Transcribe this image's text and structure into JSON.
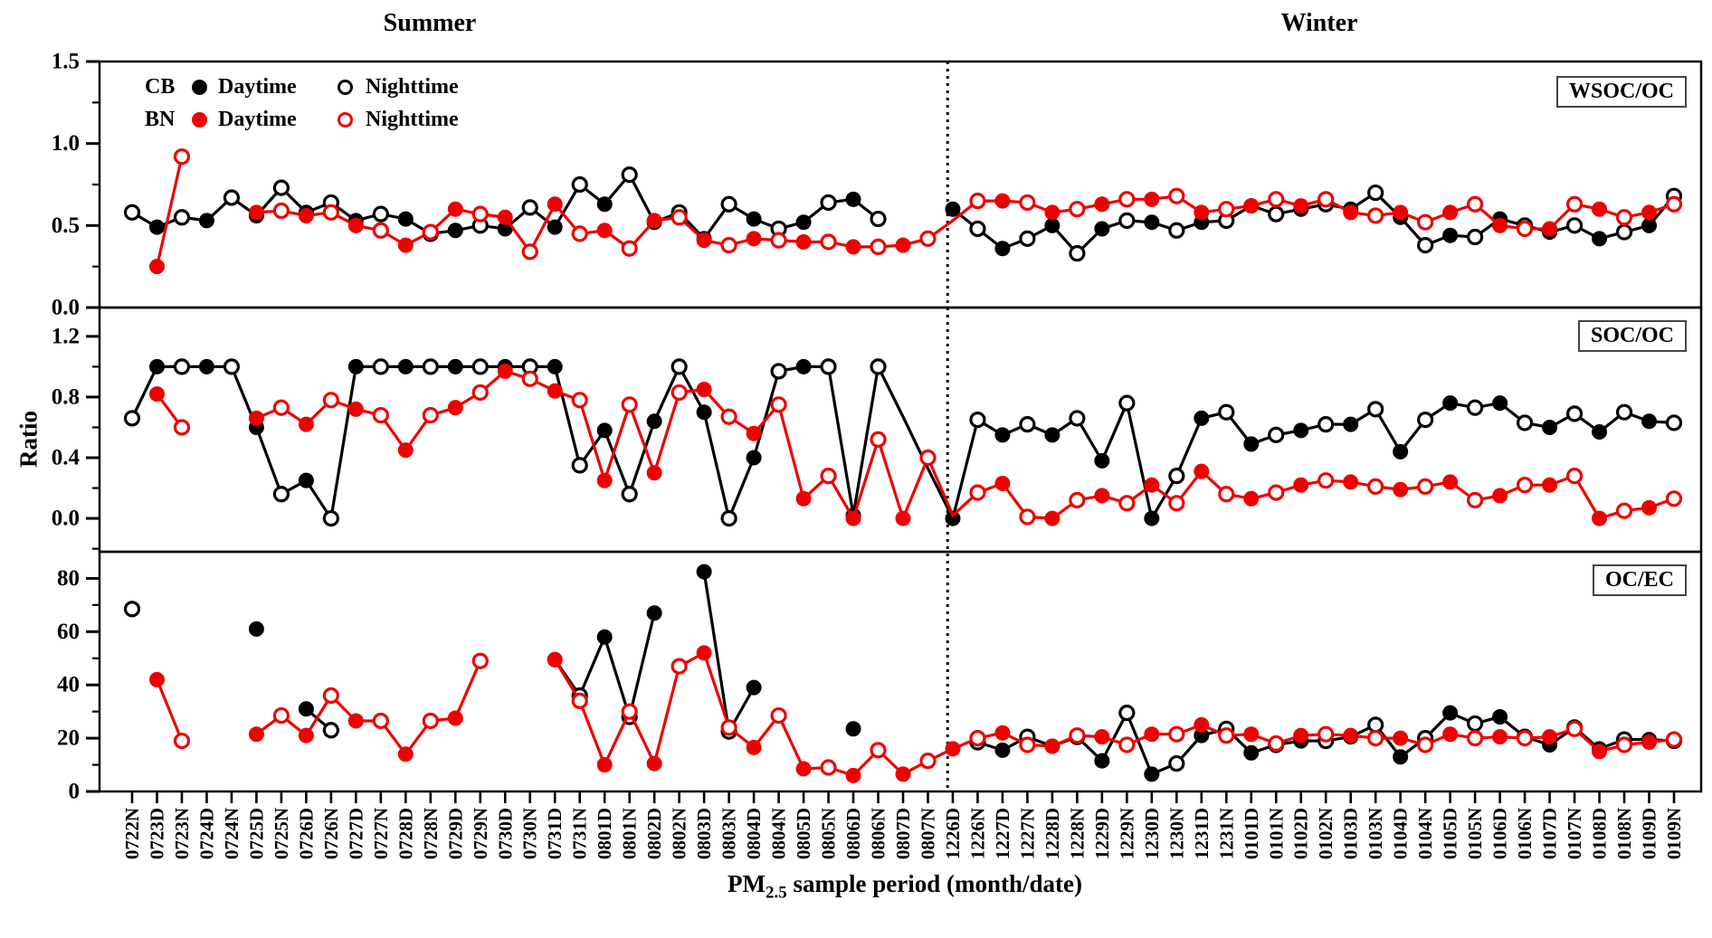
{
  "titles": {
    "summer": "Summer",
    "winter": "Winter"
  },
  "legend": {
    "rows": [
      {
        "group": "CB",
        "day_label": "Daytime",
        "night_label": "Nighttime",
        "color": "#000000"
      },
      {
        "group": "BN",
        "day_label": "Daytime",
        "night_label": "Nighttime",
        "color": "#ee0000"
      }
    ]
  },
  "axes": {
    "y_title": "Ratio",
    "x_title_prefix": "PM",
    "x_title_sub": "2.5",
    "x_title_suffix": " sample period (month/date)"
  },
  "chart_data": {
    "type": "line",
    "title": "",
    "xlabel": "PM2.5 sample period (month/date)",
    "ylabel": "Ratio",
    "legend_position": "top-left inside first panel",
    "grid": false,
    "season_split_after_index": 32,
    "divider_style": "dotted vertical line",
    "marker_rule": "categories ending in D are filled circles (Daytime), ending in N are open circles (Nighttime)",
    "categories": [
      "0722N",
      "0723D",
      "0723N",
      "0724D",
      "0724N",
      "0725D",
      "0725N",
      "0726D",
      "0726N",
      "0727D",
      "0727N",
      "0728D",
      "0728N",
      "0729D",
      "0729N",
      "0730D",
      "0730N",
      "0731D",
      "0731N",
      "0801D",
      "0801N",
      "0802D",
      "0802N",
      "0803D",
      "0803N",
      "0804D",
      "0804N",
      "0805D",
      "0805N",
      "0806D",
      "0806N",
      "0807D",
      "0807N",
      "1226D",
      "1226N",
      "1227D",
      "1227N",
      "1228D",
      "1228N",
      "1229D",
      "1229N",
      "1230D",
      "1230N",
      "1231D",
      "1231N",
      "0101D",
      "0101N",
      "0102D",
      "0102N",
      "0103D",
      "0103N",
      "0104D",
      "0104N",
      "0105D",
      "0105N",
      "0106D",
      "0106N",
      "0107D",
      "0107N",
      "0108D",
      "0108N",
      "0109D",
      "0109N"
    ],
    "panels": [
      {
        "label": "WSOC/OC",
        "ylim": [
          0,
          1.5
        ],
        "yticks": [
          0.0,
          0.5,
          1.0,
          1.5
        ],
        "ytick_labels": [
          "0.0",
          "0.5",
          "1.0",
          "1.5"
        ],
        "yminors": [
          0.25,
          0.75,
          1.25
        ],
        "series": [
          {
            "name": "CB",
            "color": "#000000",
            "values": [
              0.58,
              0.49,
              0.55,
              0.53,
              0.67,
              0.56,
              0.73,
              0.58,
              0.64,
              0.53,
              0.57,
              0.54,
              0.45,
              0.47,
              0.5,
              0.48,
              0.61,
              0.49,
              0.75,
              0.63,
              0.81,
              0.52,
              0.58,
              0.42,
              0.63,
              0.54,
              0.48,
              0.52,
              0.64,
              0.66,
              0.54,
              null,
              null,
              0.6,
              0.48,
              0.36,
              0.42,
              0.5,
              0.33,
              0.48,
              0.53,
              0.52,
              0.47,
              0.52,
              0.53,
              0.62,
              0.57,
              0.6,
              0.63,
              0.6,
              0.7,
              0.55,
              0.38,
              0.44,
              0.43,
              0.54,
              0.5,
              0.46,
              0.5,
              0.42,
              0.46,
              0.5,
              0.68
            ]
          },
          {
            "name": "BN",
            "color": "#ee0000",
            "values": [
              null,
              0.25,
              0.92,
              null,
              null,
              0.58,
              0.59,
              0.56,
              0.58,
              0.5,
              0.47,
              0.38,
              0.46,
              0.6,
              0.57,
              0.55,
              0.34,
              0.63,
              0.45,
              0.47,
              0.36,
              0.53,
              0.55,
              0.41,
              0.38,
              0.42,
              0.41,
              0.4,
              0.4,
              0.37,
              0.37,
              0.38,
              0.42,
              {
                "v": 0.53,
                "m": false
              },
              0.65,
              0.65,
              0.64,
              0.58,
              0.6,
              0.63,
              0.66,
              0.66,
              0.68,
              0.58,
              0.6,
              0.62,
              0.66,
              0.62,
              0.66,
              0.58,
              0.56,
              0.58,
              0.52,
              0.58,
              0.63,
              0.5,
              0.48,
              0.48,
              0.63,
              0.6,
              0.55,
              0.58,
              0.63
            ]
          }
        ]
      },
      {
        "label": "SOC/OC",
        "ylim": [
          -0.22,
          1.39
        ],
        "yticks": [
          0.0,
          0.4,
          0.8,
          1.2
        ],
        "ytick_labels": [
          "0.0",
          "0.4",
          "0.8",
          "1.2"
        ],
        "yminors": [
          -0.2,
          0.2,
          0.6,
          1.0
        ],
        "series": [
          {
            "name": "CB",
            "color": "#000000",
            "values": [
              0.66,
              1.0,
              1.0,
              1.0,
              1.0,
              0.6,
              0.16,
              0.25,
              0.0,
              1.0,
              1.0,
              1.0,
              1.0,
              1.0,
              1.0,
              1.0,
              1.0,
              1.0,
              0.35,
              0.58,
              0.16,
              0.64,
              1.0,
              0.7,
              0.0,
              0.4,
              0.97,
              1.0,
              1.0,
              0.02,
              1.0,
              {
                "v": 0.67,
                "m": false
              },
              {
                "v": 0.33,
                "m": false
              },
              0.0,
              0.65,
              0.55,
              0.62,
              0.55,
              0.66,
              0.38,
              0.76,
              0.0,
              0.28,
              0.66,
              0.7,
              0.49,
              0.55,
              0.58,
              0.62,
              0.62,
              0.72,
              0.44,
              0.65,
              0.76,
              0.73,
              0.76,
              0.63,
              0.6,
              0.69,
              0.57,
              0.7,
              0.64,
              0.63
            ]
          },
          {
            "name": "BN",
            "color": "#ee0000",
            "values": [
              null,
              0.82,
              0.6,
              null,
              null,
              0.66,
              0.73,
              0.62,
              0.78,
              0.72,
              0.68,
              0.45,
              0.68,
              0.73,
              0.83,
              0.97,
              0.92,
              0.84,
              0.78,
              0.25,
              0.75,
              0.3,
              0.83,
              0.85,
              0.67,
              0.56,
              0.75,
              0.13,
              0.28,
              0.0,
              0.52,
              0.0,
              0.4,
              {
                "v": 0.02,
                "m": false
              },
              0.17,
              0.23,
              0.01,
              0.0,
              0.12,
              0.15,
              0.1,
              0.22,
              0.1,
              0.31,
              0.16,
              0.13,
              0.17,
              0.22,
              0.25,
              0.24,
              0.21,
              0.19,
              0.21,
              0.24,
              0.12,
              0.15,
              0.22,
              0.22,
              0.28,
              0.0,
              0.05,
              0.07,
              0.13
            ]
          }
        ]
      },
      {
        "label": "OC/EC",
        "ylim": [
          0,
          90
        ],
        "yticks": [
          0,
          20,
          40,
          60,
          80
        ],
        "ytick_labels": [
          "0",
          "20",
          "40",
          "60",
          "80"
        ],
        "yminors": [
          10,
          30,
          50,
          70
        ],
        "series": [
          {
            "name": "CB",
            "color": "#000000",
            "values": [
              68.5,
              null,
              null,
              null,
              null,
              61,
              null,
              31,
              23,
              null,
              null,
              null,
              null,
              null,
              null,
              null,
              null,
              49.5,
              36,
              58,
              28,
              67,
              null,
              82.5,
              22.5,
              39,
              null,
              null,
              null,
              23.5,
              null,
              null,
              null,
              null,
              18.5,
              15.5,
              20.5,
              17,
              20.5,
              11.5,
              29.5,
              6.5,
              10.5,
              21,
              23.5,
              14.5,
              17.5,
              19,
              19,
              20.5,
              25,
              13,
              20,
              29.5,
              25.5,
              28,
              20.5,
              17.5,
              24,
              16,
              19.5,
              19.5,
              19
            ]
          },
          {
            "name": "BN",
            "color": "#ee0000",
            "values": [
              null,
              42,
              19,
              null,
              null,
              21.5,
              28.5,
              21,
              36,
              26.5,
              26.5,
              14,
              26.5,
              27.5,
              49,
              null,
              null,
              49.5,
              34,
              10,
              30,
              10.5,
              47,
              52,
              24,
              16.5,
              28.5,
              8.5,
              9,
              6,
              15.5,
              6.5,
              11.5,
              16,
              20,
              22,
              17.5,
              17,
              21,
              20.5,
              17.5,
              21.5,
              21.5,
              25,
              21,
              21.5,
              18,
              21,
              21.5,
              21,
              20,
              20,
              17.5,
              21.5,
              20,
              20.5,
              20,
              20.5,
              23.5,
              15,
              17.5,
              18.5,
              19.5
            ]
          }
        ]
      }
    ]
  }
}
